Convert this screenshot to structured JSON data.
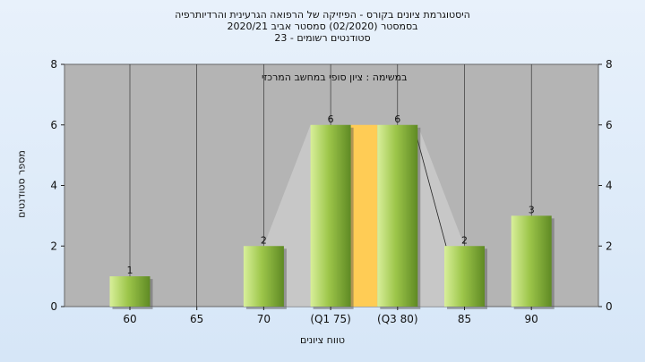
{
  "chart_data": {
    "type": "bar",
    "title_lines": [
      "היסטוגרמת ציונים בקורס - הפיזיקה של הרפואה הגרעינית והרדיותרפיה",
      "בסמסטר  (02/2020)  סמסטר אביב 2020/21",
      "סטודנטים רשומים - 23"
    ],
    "subtitle": "במשימה : ציון סופי במחשב המרכזי",
    "xlabel": "טווח ציונים",
    "ylabel": "מספר סטודנטים",
    "categories": [
      "60",
      "65",
      "70",
      "(Q1 75)",
      "(Q3 80)",
      "85",
      "90"
    ],
    "values": [
      1,
      0,
      2,
      6,
      6,
      2,
      3
    ],
    "ylim": [
      0,
      8
    ],
    "yticks": [
      0,
      2,
      4,
      6,
      8
    ],
    "grid": "vertical",
    "interquartile_band": {
      "from": "(Q1 75)",
      "to": "(Q3 80)",
      "color": "#ffcc55"
    },
    "colors": {
      "bar_light": "#d8ef9a",
      "bar_dark": "#5f8a24",
      "plot_bg": "#b4b4b4",
      "band": "#ffcc55",
      "page_bg": "#dbe8f7"
    }
  }
}
